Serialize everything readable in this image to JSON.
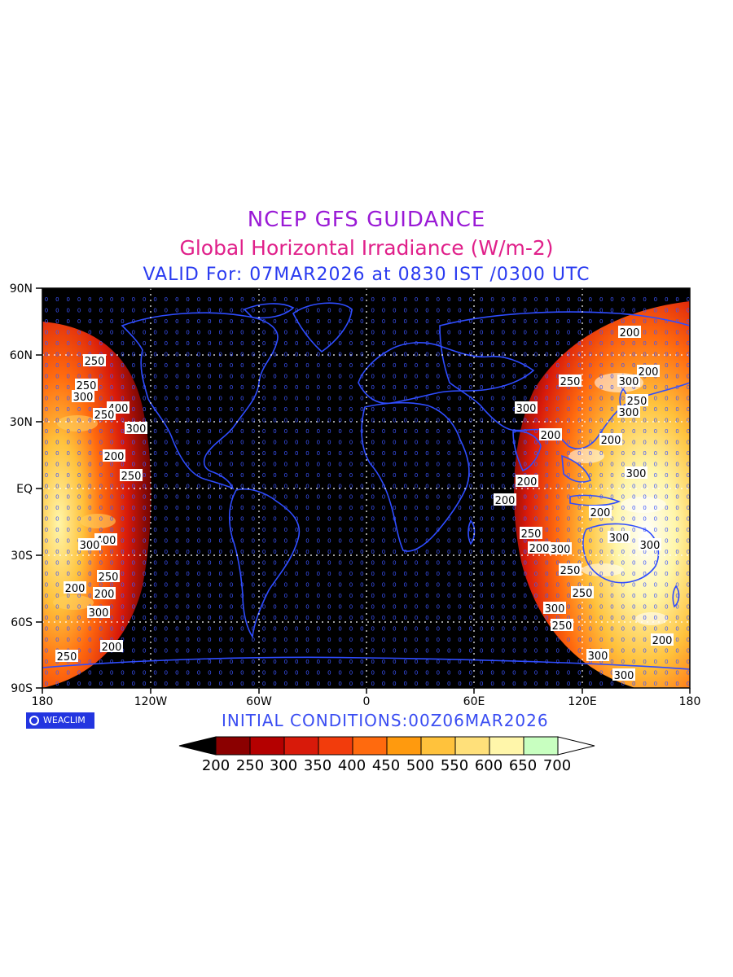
{
  "header": {
    "line1": "NCEP GFS GUIDANCE",
    "line2": "Global Horizontal Irradiance (W/m-2)",
    "line3": "VALID For: 07MAR2026 at 0830 IST /0300 UTC"
  },
  "axes": {
    "lat_labels": [
      "90N",
      "60N",
      "30N",
      "EQ",
      "30S",
      "60S",
      "90S"
    ],
    "lon_labels": [
      "180",
      "120W",
      "60W",
      "0",
      "60E",
      "120E",
      "180"
    ]
  },
  "contour_labels": [
    "200",
    "250",
    "300",
    "400",
    "250",
    "300",
    "200",
    "250",
    "300",
    "200",
    "250",
    "300",
    "200",
    "250",
    "300",
    "200",
    "300",
    "200",
    "250",
    "300",
    "200",
    "300",
    "400",
    "300",
    "250",
    "200",
    "300",
    "200",
    "250",
    "300",
    "250",
    "200",
    "300",
    "250",
    "200",
    "300",
    "250",
    "200",
    "300",
    "250",
    "200"
  ],
  "footer": {
    "logo_text": "WEACLIM",
    "initial_conditions": "INITIAL CONDITIONS:00Z06MAR2026"
  },
  "colorbar": {
    "levels": [
      "200",
      "250",
      "300",
      "350",
      "400",
      "450",
      "500",
      "550",
      "600",
      "650",
      "700"
    ],
    "colors": [
      "#8b0000",
      "#b40000",
      "#d81a0a",
      "#f23c0c",
      "#ff6a0e",
      "#ff9a0e",
      "#ffc23c",
      "#ffe07a",
      "#fff6aa",
      "#c8ffc0"
    ],
    "below_color": "#000000",
    "above_color": "#ffffff"
  },
  "map": {
    "background": "#000000",
    "coastline_color": "#2e4cff",
    "gridline_color": "#ffffff",
    "value_text_color": "#3d55ff"
  }
}
